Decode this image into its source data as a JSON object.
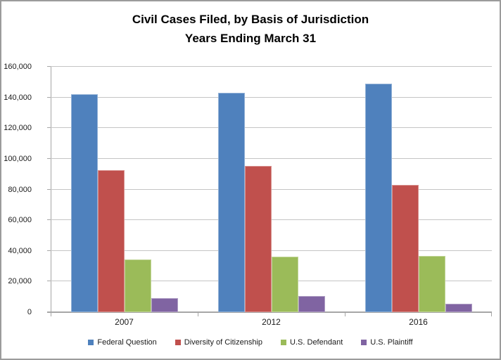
{
  "chart_data": {
    "type": "bar",
    "title_line1": "Civil Cases Filed, by Basis of Jurisdiction",
    "title_line2": "Years Ending March 31",
    "categories": [
      "2007",
      "2012",
      "2016"
    ],
    "series": [
      {
        "name": "Federal Question",
        "color": "#4F81BD",
        "values": [
          142000,
          143000,
          149000
        ]
      },
      {
        "name": "Diversity of Citizenship",
        "color": "#C0504D",
        "values": [
          92500,
          95500,
          83000
        ]
      },
      {
        "name": "U.S. Defendant",
        "color": "#9BBB59",
        "values": [
          34500,
          36300,
          36800
        ]
      },
      {
        "name": "U.S. Plaintiff",
        "color": "#8064A2",
        "values": [
          9200,
          10400,
          5700
        ]
      }
    ],
    "ylim": [
      0,
      160000
    ],
    "ytick_interval": 20000,
    "ytick_labels": [
      "0",
      "20,000",
      "40,000",
      "60,000",
      "80,000",
      "100,000",
      "120,000",
      "140,000",
      "160,000"
    ],
    "grid": true,
    "legend_position": "bottom",
    "xlabel": "",
    "ylabel": ""
  },
  "colors": {
    "gridline": "#C4C4C4",
    "axis_line": "#A6A6A6",
    "frame_border": "#9B9B9B",
    "title_text": "#000000",
    "label_text": "#1A1A1A"
  }
}
